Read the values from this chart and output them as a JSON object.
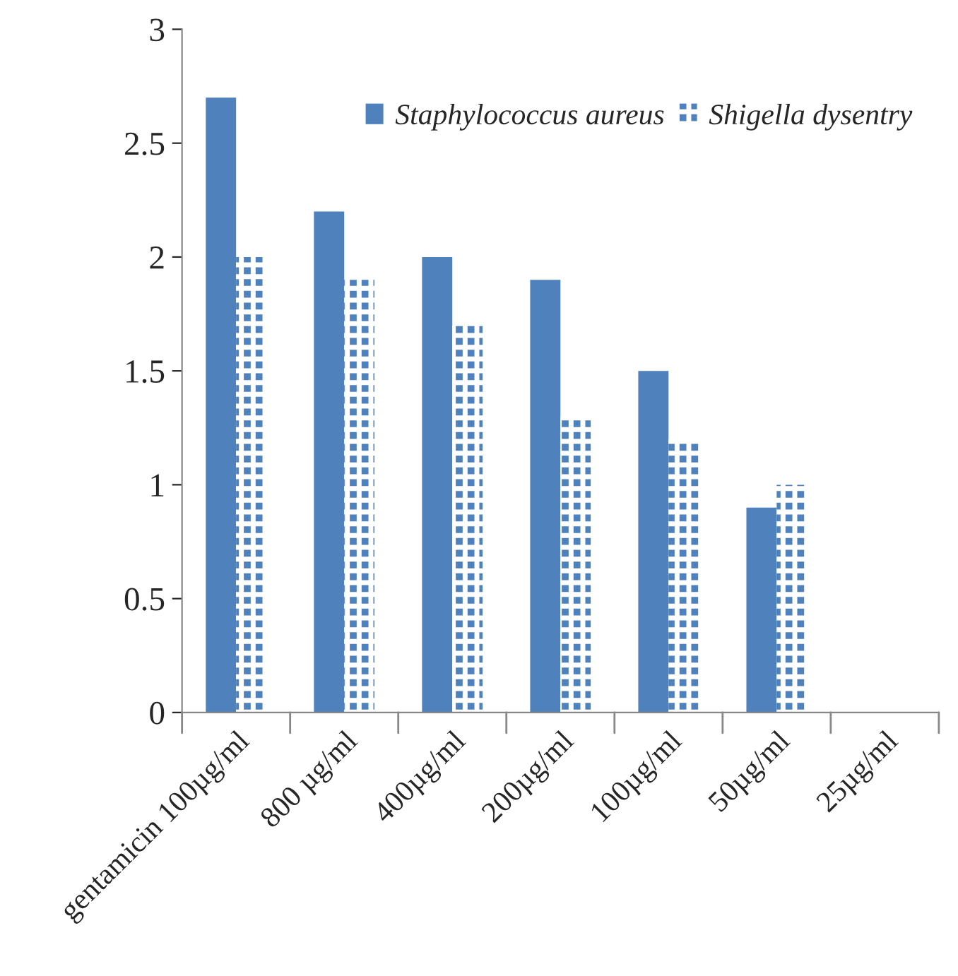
{
  "chart_data": {
    "type": "bar",
    "categories": [
      "gentamicin 100µg/ml",
      "800 µg/ml",
      "400µg/ml",
      "200µg/ml",
      "100µg/ml",
      "50µg/ml",
      "25µg/ml"
    ],
    "series": [
      {
        "name": "Staphylococcus aureus",
        "color": "#4f81bd",
        "values": [
          2.7,
          2.2,
          2.0,
          1.9,
          1.5,
          0.9,
          0
        ]
      },
      {
        "name": "Shigella dysentry",
        "color": "#4f81bd",
        "values": [
          2.0,
          1.9,
          1.7,
          1.3,
          1.2,
          1.0,
          0
        ]
      }
    ],
    "ylim": [
      0,
      3
    ],
    "yticks": [
      0,
      0.5,
      1,
      1.5,
      2,
      2.5,
      3
    ],
    "grid": false,
    "legend": "top right"
  }
}
